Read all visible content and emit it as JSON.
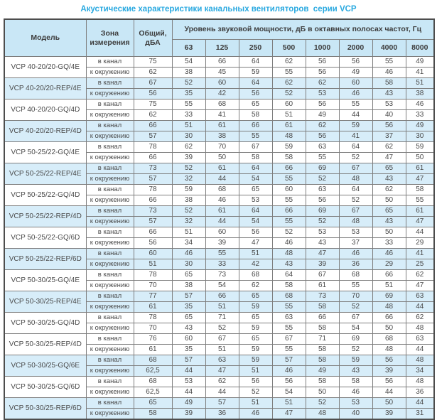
{
  "title": "Акустические характеристики канальных вентиляторов  серии VCP",
  "colors": {
    "title_accent": "#2aa9e0",
    "header_bg": "#c9e7f6",
    "shaded_row_bg": "#d7edf9",
    "border": "#7e7e7e"
  },
  "table": {
    "headers": {
      "model": "Модель",
      "zone": "Зона измерения",
      "total": "Общий, дБА",
      "spl": "Уровень звуковой мощности, дБ в октавных полосах частот, Гц",
      "frequencies": [
        "63",
        "125",
        "250",
        "500",
        "1000",
        "2000",
        "4000",
        "8000"
      ]
    },
    "groups": [
      {
        "model": "VCP 40-20/20-GQ/4E",
        "shaded": false,
        "rows": [
          {
            "zone": "в канал",
            "total": "75",
            "values": [
              "54",
              "66",
              "64",
              "62",
              "56",
              "56",
              "55",
              "49"
            ]
          },
          {
            "zone": "к окружению",
            "total": "62",
            "values": [
              "38",
              "45",
              "59",
              "55",
              "56",
              "49",
              "46",
              "41"
            ]
          }
        ]
      },
      {
        "model": "VCP 40-20/20-REP/4E",
        "shaded": true,
        "rows": [
          {
            "zone": "в канал",
            "total": "67",
            "values": [
              "52",
              "60",
              "64",
              "62",
              "62",
              "60",
              "58",
              "51"
            ]
          },
          {
            "zone": "к окружению",
            "total": "56",
            "values": [
              "35",
              "42",
              "56",
              "52",
              "53",
              "46",
              "43",
              "38"
            ]
          }
        ]
      },
      {
        "model": "VCP 40-20/20-GQ/4D",
        "shaded": false,
        "rows": [
          {
            "zone": "в канал",
            "total": "75",
            "values": [
              "55",
              "68",
              "65",
              "60",
              "56",
              "55",
              "53",
              "46"
            ]
          },
          {
            "zone": "к окружению",
            "total": "62",
            "values": [
              "33",
              "41",
              "58",
              "51",
              "49",
              "44",
              "40",
              "33"
            ]
          }
        ]
      },
      {
        "model": "VCP 40-20/20-REP/4D",
        "shaded": true,
        "rows": [
          {
            "zone": "в канал",
            "total": "66",
            "values": [
              "51",
              "61",
              "66",
              "61",
              "62",
              "59",
              "56",
              "49"
            ]
          },
          {
            "zone": "к окружению",
            "total": "57",
            "values": [
              "30",
              "38",
              "55",
              "48",
              "56",
              "41",
              "37",
              "30"
            ]
          }
        ]
      },
      {
        "model": "VCP 50-25/22-GQ/4E",
        "shaded": false,
        "rows": [
          {
            "zone": "в канал",
            "total": "78",
            "values": [
              "62",
              "70",
              "67",
              "59",
              "63",
              "64",
              "62",
              "59"
            ]
          },
          {
            "zone": "к окружению",
            "total": "66",
            "values": [
              "39",
              "50",
              "58",
              "58",
              "55",
              "52",
              "47",
              "50"
            ]
          }
        ]
      },
      {
        "model": "VCP 50-25/22-REP/4E",
        "shaded": true,
        "rows": [
          {
            "zone": "в канал",
            "total": "73",
            "values": [
              "52",
              "61",
              "64",
              "66",
              "69",
              "67",
              "65",
              "61"
            ]
          },
          {
            "zone": "к окружению",
            "total": "57",
            "values": [
              "32",
              "44",
              "54",
              "55",
              "52",
              "48",
              "43",
              "47"
            ]
          }
        ]
      },
      {
        "model": "VCP 50-25/22-GQ/4D",
        "shaded": false,
        "rows": [
          {
            "zone": "в канал",
            "total": "78",
            "values": [
              "59",
              "68",
              "65",
              "60",
              "63",
              "64",
              "62",
              "58"
            ]
          },
          {
            "zone": "к окружению",
            "total": "66",
            "values": [
              "38",
              "46",
              "53",
              "55",
              "56",
              "52",
              "50",
              "55"
            ]
          }
        ]
      },
      {
        "model": "VCP 50-25/22-REP/4D",
        "shaded": true,
        "rows": [
          {
            "zone": "в канал",
            "total": "73",
            "values": [
              "52",
              "61",
              "64",
              "66",
              "69",
              "67",
              "65",
              "61"
            ]
          },
          {
            "zone": "к окружению",
            "total": "57",
            "values": [
              "32",
              "44",
              "54",
              "55",
              "52",
              "48",
              "43",
              "47"
            ]
          }
        ]
      },
      {
        "model": "VCP 50-25/22-GQ/6D",
        "shaded": false,
        "rows": [
          {
            "zone": "в канал",
            "total": "66",
            "values": [
              "51",
              "60",
              "56",
              "52",
              "53",
              "53",
              "50",
              "44"
            ]
          },
          {
            "zone": "к окружению",
            "total": "56",
            "values": [
              "34",
              "39",
              "47",
              "46",
              "43",
              "37",
              "33",
              "29"
            ]
          }
        ]
      },
      {
        "model": "VCP 50-25/22-REP/6D",
        "shaded": true,
        "rows": [
          {
            "zone": "в канал",
            "total": "60",
            "values": [
              "46",
              "55",
              "51",
              "48",
              "47",
              "46",
              "46",
              "41"
            ]
          },
          {
            "zone": "к окружению",
            "total": "51",
            "values": [
              "30",
              "33",
              "42",
              "43",
              "39",
              "36",
              "29",
              "25"
            ]
          }
        ]
      },
      {
        "model": "VCP 50-30/25-GQ/4E",
        "shaded": false,
        "rows": [
          {
            "zone": "в канал",
            "total": "78",
            "values": [
              "65",
              "73",
              "68",
              "64",
              "67",
              "68",
              "66",
              "62"
            ]
          },
          {
            "zone": "к окружению",
            "total": "70",
            "values": [
              "38",
              "54",
              "62",
              "58",
              "61",
              "55",
              "51",
              "47"
            ]
          }
        ]
      },
      {
        "model": "VCP 50-30/25-REP/4E",
        "shaded": true,
        "rows": [
          {
            "zone": "в канал",
            "total": "77",
            "values": [
              "57",
              "66",
              "65",
              "68",
              "73",
              "70",
              "69",
              "63"
            ]
          },
          {
            "zone": "к окружению",
            "total": "61",
            "values": [
              "35",
              "51",
              "59",
              "55",
              "58",
              "52",
              "48",
              "44"
            ]
          }
        ]
      },
      {
        "model": "VCP 50-30/25-GQ/4D",
        "shaded": false,
        "rows": [
          {
            "zone": "в канал",
            "total": "78",
            "values": [
              "65",
              "71",
              "65",
              "63",
              "66",
              "67",
              "66",
              "62"
            ]
          },
          {
            "zone": "к окружению",
            "total": "70",
            "values": [
              "43",
              "52",
              "59",
              "55",
              "58",
              "54",
              "50",
              "48"
            ]
          }
        ]
      },
      {
        "model": "VCP 50-30/25-REP/4D",
        "shaded": false,
        "rows": [
          {
            "zone": "в канал",
            "total": "76",
            "values": [
              "60",
              "67",
              "65",
              "67",
              "71",
              "69",
              "68",
              "63"
            ]
          },
          {
            "zone": "к окружению",
            "total": "61",
            "values": [
              "35",
              "51",
              "59",
              "55",
              "58",
              "52",
              "48",
              "44"
            ]
          }
        ]
      },
      {
        "model": "VCP 50-30/25-GQ/6E",
        "shaded": true,
        "rows": [
          {
            "zone": "в канал",
            "total": "68",
            "values": [
              "57",
              "63",
              "59",
              "57",
              "58",
              "59",
              "56",
              "48"
            ]
          },
          {
            "zone": "к окружению",
            "total": "62,5",
            "values": [
              "44",
              "47",
              "51",
              "46",
              "49",
              "43",
              "39",
              "34"
            ]
          }
        ]
      },
      {
        "model": "VCP 50-30/25-GQ/6D",
        "shaded": false,
        "rows": [
          {
            "zone": "в канал",
            "total": "68",
            "values": [
              "53",
              "62",
              "56",
              "56",
              "58",
              "58",
              "56",
              "48"
            ]
          },
          {
            "zone": "к окружению",
            "total": "62,5",
            "values": [
              "44",
              "44",
              "52",
              "54",
              "50",
              "46",
              "44",
              "36"
            ]
          }
        ]
      },
      {
        "model": "VCP 50-30/25-REP/6D",
        "shaded": true,
        "rows": [
          {
            "zone": "в канал",
            "total": "65",
            "values": [
              "49",
              "57",
              "51",
              "51",
              "52",
              "53",
              "50",
              "44"
            ]
          },
          {
            "zone": "к окружению",
            "total": "58",
            "values": [
              "39",
              "36",
              "46",
              "47",
              "48",
              "40",
              "39",
              "31"
            ]
          }
        ]
      }
    ]
  }
}
